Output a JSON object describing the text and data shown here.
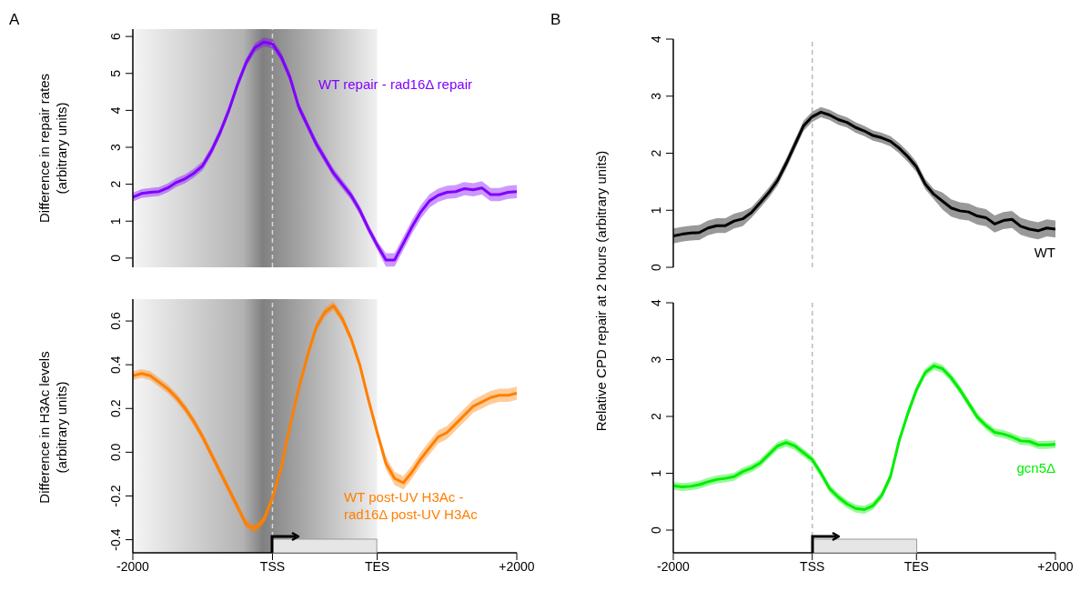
{
  "chart_data": [
    {
      "type": "line",
      "ylabel": "Difference in repair rates\n(arbitrary units)",
      "annotations": [
        "A"
      ],
      "categories": [
        "-2000",
        null,
        null,
        null,
        null,
        null,
        null,
        null,
        null,
        null,
        null,
        null,
        null,
        null,
        null,
        null,
        "TSS",
        null,
        null,
        null,
        null,
        null,
        null,
        null,
        null,
        null,
        null,
        null,
        "TES",
        null,
        null,
        null,
        null,
        null,
        null,
        null,
        null,
        null,
        null,
        null,
        null,
        null,
        null,
        null,
        "+2000"
      ],
      "ylim": [
        -0.25,
        6.2
      ],
      "yticks": [
        0,
        1,
        2,
        3,
        4,
        5,
        6
      ],
      "tick_labels": "y",
      "bands": [
        {
          "axis": "x",
          "from": "-2000",
          "to": "TES",
          "color": "#808080"
        }
      ],
      "ref_lines": [
        {
          "axis": "x",
          "value": "TSS",
          "color": "#d9d9d9",
          "line_style": "dashed"
        }
      ],
      "series": [
        {
          "name": "WT repair - rad16Δ repair",
          "color": "#8000ff",
          "values": [
            1.65,
            1.75,
            1.78,
            1.8,
            1.9,
            2.05,
            2.15,
            2.3,
            2.5,
            2.9,
            3.4,
            4.0,
            4.7,
            5.3,
            5.7,
            5.85,
            5.8,
            5.45,
            4.9,
            4.1,
            3.6,
            3.1,
            2.7,
            2.3,
            2.0,
            1.7,
            1.3,
            0.8,
            0.35,
            -0.05,
            -0.05,
            0.4,
            0.85,
            1.25,
            1.55,
            1.7,
            1.78,
            1.8,
            1.88,
            1.85,
            1.9,
            1.72,
            1.72,
            1.78,
            1.8
          ],
          "lower": [
            1.53,
            1.63,
            1.66,
            1.68,
            1.78,
            1.93,
            2.03,
            2.18,
            2.38,
            2.78,
            3.28,
            3.88,
            4.58,
            5.18,
            5.58,
            5.73,
            5.68,
            5.33,
            4.78,
            3.98,
            3.48,
            2.98,
            2.58,
            2.18,
            1.88,
            1.58,
            1.18,
            0.68,
            0.23,
            -0.23,
            -0.23,
            0.22,
            0.67,
            1.07,
            1.37,
            1.52,
            1.6,
            1.62,
            1.7,
            1.67,
            1.72,
            1.54,
            1.54,
            1.6,
            1.62
          ],
          "upper": [
            1.77,
            1.87,
            1.9,
            1.92,
            2.02,
            2.17,
            2.27,
            2.42,
            2.62,
            3.02,
            3.52,
            4.12,
            4.82,
            5.42,
            5.82,
            5.97,
            5.92,
            5.57,
            5.02,
            4.22,
            3.72,
            3.22,
            2.82,
            2.42,
            2.12,
            1.82,
            1.42,
            0.92,
            0.47,
            0.13,
            0.13,
            0.58,
            1.03,
            1.43,
            1.73,
            1.88,
            1.96,
            1.98,
            2.06,
            2.03,
            2.08,
            1.9,
            1.9,
            1.96,
            1.98
          ]
        }
      ]
    },
    {
      "type": "line",
      "ylabel": "Difference in H3Ac levels\n(arbitrary units)",
      "categories": [
        "-2000",
        null,
        null,
        null,
        null,
        null,
        null,
        null,
        null,
        null,
        null,
        null,
        null,
        null,
        null,
        null,
        "TSS",
        null,
        null,
        null,
        null,
        null,
        null,
        null,
        null,
        null,
        null,
        null,
        "TES",
        null,
        null,
        null,
        null,
        null,
        null,
        null,
        null,
        null,
        null,
        null,
        null,
        null,
        null,
        null,
        "+2000"
      ],
      "ylim": [
        -0.46,
        0.7
      ],
      "yticks": [
        -0.4,
        -0.2,
        {
          "value": 0,
          "label": "0.0"
        },
        0.2,
        0.4,
        0.6
      ],
      "bands": [
        {
          "axis": "x",
          "from": "-2000",
          "to": "TES",
          "color": "#808080"
        }
      ],
      "ref_lines": [
        {
          "axis": "x",
          "value": "TSS",
          "color": "#d9d9d9",
          "line_style": "dashed"
        }
      ],
      "series": [
        {
          "name": "WT post-UV H3Ac - rad16Δ post-UV H3Ac",
          "color": "#ff7f00",
          "values": [
            0.35,
            0.36,
            0.35,
            0.32,
            0.29,
            0.25,
            0.2,
            0.14,
            0.07,
            -0.01,
            -0.09,
            -0.17,
            -0.25,
            -0.33,
            -0.35,
            -0.31,
            -0.21,
            -0.07,
            0.12,
            0.29,
            0.44,
            0.57,
            0.64,
            0.67,
            0.61,
            0.52,
            0.4,
            0.24,
            0.09,
            -0.05,
            -0.12,
            -0.14,
            -0.09,
            -0.03,
            0.02,
            0.07,
            0.09,
            0.13,
            0.17,
            0.21,
            0.23,
            0.25,
            0.26,
            0.26,
            0.27
          ],
          "lower": [
            0.33,
            0.34,
            0.33,
            0.3,
            0.27,
            0.23,
            0.18,
            0.12,
            0.05,
            -0.03,
            -0.11,
            -0.19,
            -0.27,
            -0.35,
            -0.37,
            -0.33,
            -0.23,
            -0.09,
            0.1,
            0.27,
            0.42,
            0.55,
            0.62,
            0.65,
            0.59,
            0.5,
            0.38,
            0.22,
            0.07,
            -0.08,
            -0.15,
            -0.17,
            -0.12,
            -0.06,
            -0.01,
            0.04,
            0.06,
            0.1,
            0.14,
            0.18,
            0.2,
            0.22,
            0.23,
            0.23,
            0.24
          ],
          "upper": [
            0.37,
            0.38,
            0.37,
            0.34,
            0.31,
            0.27,
            0.22,
            0.16,
            0.09,
            0.01,
            -0.07,
            -0.15,
            -0.23,
            -0.31,
            -0.33,
            -0.29,
            -0.19,
            -0.05,
            0.14,
            0.31,
            0.46,
            0.59,
            0.66,
            0.69,
            0.63,
            0.54,
            0.42,
            0.26,
            0.11,
            -0.02,
            -0.09,
            -0.11,
            -0.06,
            0,
            0.05,
            0.1,
            0.12,
            0.16,
            0.2,
            0.24,
            0.26,
            0.28,
            0.29,
            0.29,
            0.3
          ]
        }
      ]
    },
    {
      "type": "line",
      "ylabel": "Relative CPD repair at 2 hours (arbitrary units)",
      "annotations": [
        "B"
      ],
      "categories": [
        "-2000",
        null,
        null,
        null,
        null,
        null,
        null,
        null,
        null,
        null,
        null,
        null,
        null,
        null,
        null,
        null,
        "TSS",
        null,
        null,
        null,
        null,
        null,
        null,
        null,
        null,
        null,
        null,
        null,
        "TES",
        null,
        null,
        null,
        null,
        null,
        null,
        null,
        null,
        null,
        null,
        null,
        null,
        null,
        null,
        null,
        "+2000"
      ],
      "ylim": [
        0,
        4
      ],
      "yticks": [
        0,
        1,
        2,
        3,
        4
      ],
      "tick_labels": "y",
      "ref_lines": [
        {
          "axis": "x",
          "value": "TSS",
          "color": "#bbbbbb",
          "line_style": "dashed"
        }
      ],
      "series": [
        {
          "name": "WT",
          "color": "#000000",
          "values": [
            0.55,
            0.58,
            0.6,
            0.61,
            0.69,
            0.73,
            0.73,
            0.81,
            0.85,
            0.96,
            1.13,
            1.31,
            1.52,
            1.82,
            2.15,
            2.48,
            2.64,
            2.72,
            2.67,
            2.59,
            2.54,
            2.45,
            2.39,
            2.31,
            2.27,
            2.21,
            2.09,
            1.94,
            1.76,
            1.46,
            1.28,
            1.16,
            1.04,
            0.99,
            0.97,
            0.9,
            0.87,
            0.76,
            0.82,
            0.84,
            0.72,
            0.67,
            0.64,
            0.69,
            0.67
          ],
          "lower": [
            0.42,
            0.45,
            0.47,
            0.48,
            0.56,
            0.6,
            0.6,
            0.68,
            0.72,
            0.87,
            1.04,
            1.22,
            1.43,
            1.73,
            2.06,
            2.39,
            2.55,
            2.63,
            2.58,
            2.5,
            2.45,
            2.36,
            2.3,
            2.22,
            2.18,
            2.12,
            2,
            1.85,
            1.67,
            1.37,
            1.19,
            1.01,
            0.89,
            0.84,
            0.82,
            0.75,
            0.72,
            0.61,
            0.67,
            0.69,
            0.57,
            0.52,
            0.49,
            0.54,
            0.52
          ],
          "upper": [
            0.68,
            0.71,
            0.73,
            0.74,
            0.82,
            0.86,
            0.86,
            0.94,
            0.98,
            1.05,
            1.22,
            1.4,
            1.61,
            1.91,
            2.24,
            2.57,
            2.73,
            2.81,
            2.76,
            2.68,
            2.63,
            2.54,
            2.48,
            2.4,
            2.36,
            2.3,
            2.18,
            2.03,
            1.85,
            1.55,
            1.37,
            1.31,
            1.19,
            1.14,
            1.12,
            1.05,
            1.02,
            0.91,
            0.97,
            0.99,
            0.87,
            0.82,
            0.79,
            0.84,
            0.82
          ]
        }
      ]
    },
    {
      "type": "line",
      "categories": [
        "-2000",
        null,
        null,
        null,
        null,
        null,
        null,
        null,
        null,
        null,
        null,
        null,
        null,
        null,
        null,
        null,
        "TSS",
        null,
        null,
        null,
        null,
        null,
        null,
        null,
        null,
        null,
        null,
        null,
        "TES",
        null,
        null,
        null,
        null,
        null,
        null,
        null,
        null,
        null,
        null,
        null,
        null,
        null,
        null,
        null,
        "+2000"
      ],
      "ylim": [
        -0.4,
        4
      ],
      "yticks": [
        0,
        1,
        2,
        3,
        4
      ],
      "ref_lines": [
        {
          "axis": "x",
          "value": "TSS",
          "color": "#bbbbbb",
          "line_style": "dashed"
        }
      ],
      "series": [
        {
          "name": "gcn5Δ",
          "color": "#00ee00",
          "values": [
            0.78,
            0.76,
            0.77,
            0.8,
            0.85,
            0.89,
            0.91,
            0.94,
            1.03,
            1.09,
            1.18,
            1.33,
            1.48,
            1.54,
            1.48,
            1.36,
            1.24,
            1.0,
            0.73,
            0.58,
            0.46,
            0.38,
            0.36,
            0.43,
            0.61,
            0.94,
            1.57,
            2.05,
            2.47,
            2.77,
            2.89,
            2.84,
            2.68,
            2.47,
            2.23,
            1.99,
            1.84,
            1.72,
            1.69,
            1.64,
            1.57,
            1.56,
            1.5,
            1.5,
            1.51
          ],
          "lower": [
            0.71,
            0.69,
            0.7,
            0.73,
            0.78,
            0.82,
            0.84,
            0.87,
            0.96,
            1.02,
            1.11,
            1.26,
            1.41,
            1.47,
            1.41,
            1.29,
            1.17,
            0.93,
            0.66,
            0.51,
            0.39,
            0.31,
            0.29,
            0.36,
            0.54,
            0.87,
            1.5,
            1.98,
            2.4,
            2.7,
            2.82,
            2.77,
            2.61,
            2.4,
            2.16,
            1.92,
            1.77,
            1.65,
            1.62,
            1.57,
            1.5,
            1.49,
            1.43,
            1.43,
            1.44
          ],
          "upper": [
            0.85,
            0.83,
            0.84,
            0.87,
            0.92,
            0.96,
            0.98,
            1.01,
            1.1,
            1.16,
            1.25,
            1.4,
            1.55,
            1.61,
            1.55,
            1.43,
            1.31,
            1.07,
            0.8,
            0.65,
            0.53,
            0.45,
            0.43,
            0.5,
            0.68,
            1.01,
            1.64,
            2.12,
            2.54,
            2.84,
            2.96,
            2.91,
            2.75,
            2.54,
            2.3,
            2.06,
            1.91,
            1.79,
            1.76,
            1.71,
            1.64,
            1.63,
            1.57,
            1.57,
            1.58
          ]
        }
      ]
    }
  ]
}
